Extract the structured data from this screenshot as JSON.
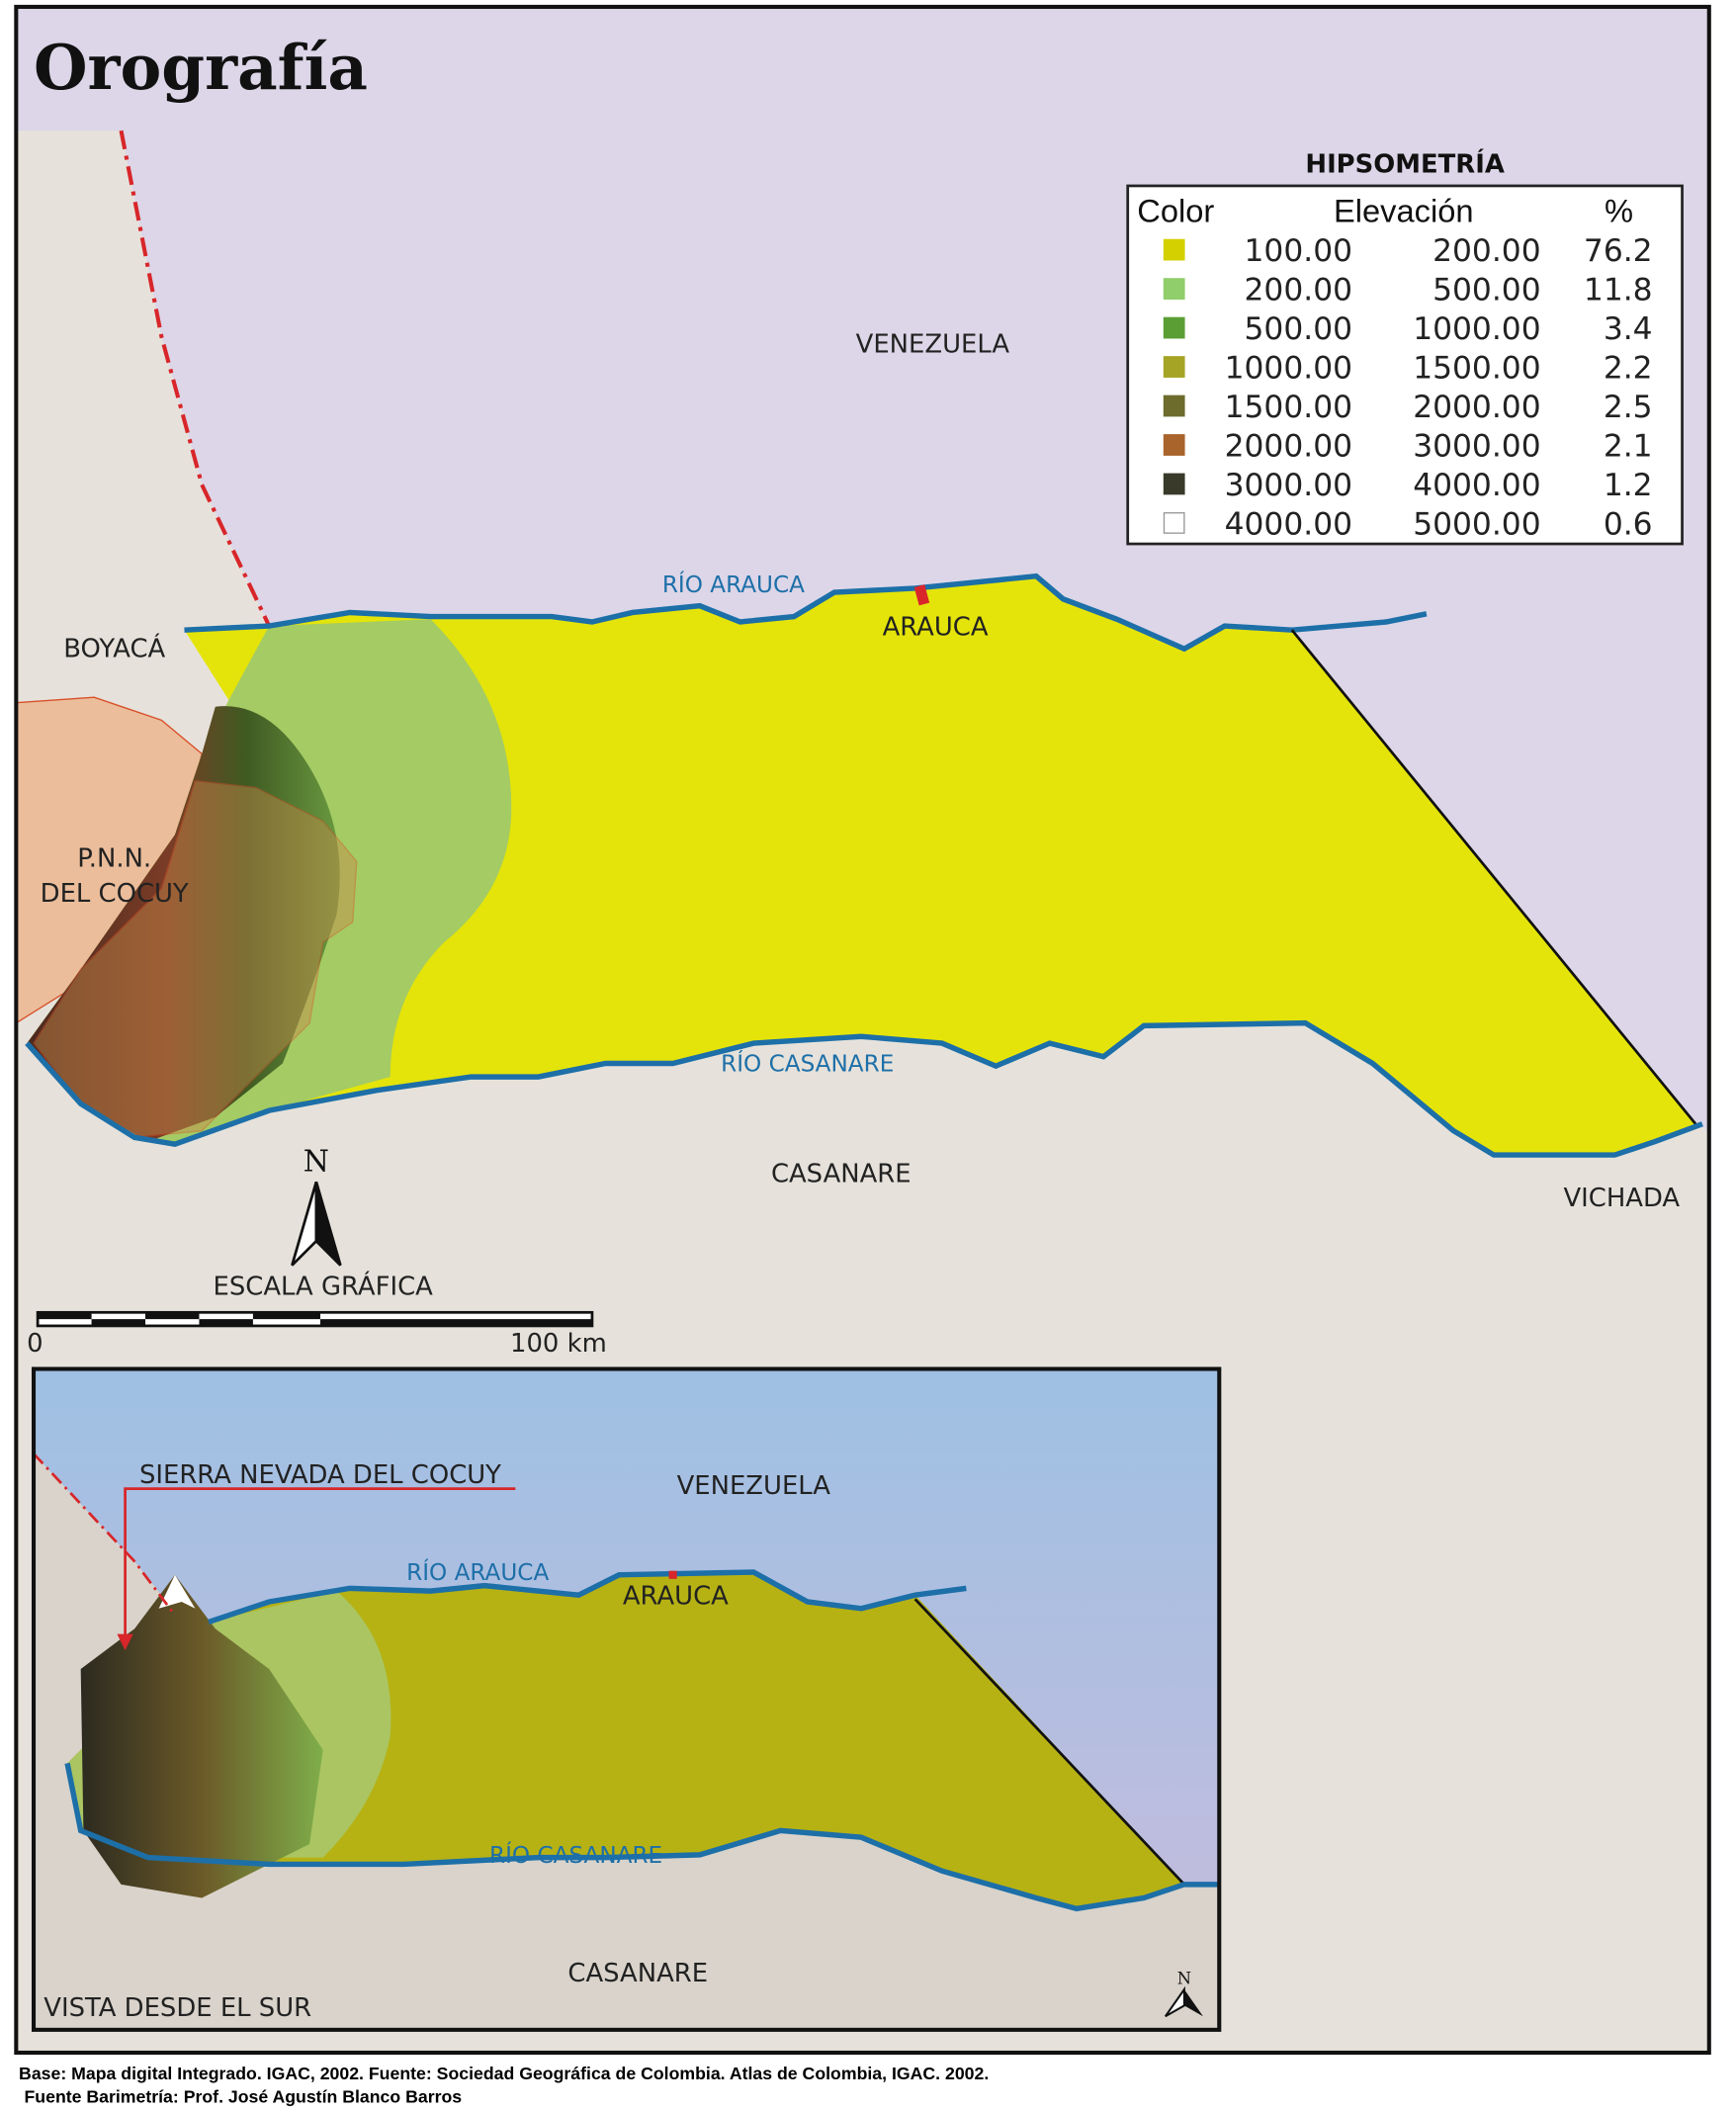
{
  "title": "Orografía",
  "legend": {
    "title": "HIPSOMETRÍA",
    "headers": {
      "color": "Color",
      "elevation": "Elevación",
      "percent": "%"
    },
    "rows": [
      {
        "color": "#d4d000",
        "min": "100.00",
        "max": "200.00",
        "pct": "76.2"
      },
      {
        "color": "#8fce6a",
        "min": "200.00",
        "max": "500.00",
        "pct": "11.8"
      },
      {
        "color": "#5a9e34",
        "min": "500.00",
        "max": "1000.00",
        "pct": "3.4"
      },
      {
        "color": "#a5a424",
        "min": "1000.00",
        "max": "1500.00",
        "pct": "2.2"
      },
      {
        "color": "#6d6c2c",
        "min": "1500.00",
        "max": "2000.00",
        "pct": "2.5"
      },
      {
        "color": "#a8642a",
        "min": "2000.00",
        "max": "3000.00",
        "pct": "2.1"
      },
      {
        "color": "#393a2a",
        "min": "3000.00",
        "max": "4000.00",
        "pct": "1.2"
      },
      {
        "color": "#ffffff",
        "min": "4000.00",
        "max": "5000.00",
        "pct": "0.6"
      }
    ]
  },
  "map_labels": {
    "venezuela": "VENEZUELA",
    "boyaca": "BOYACÁ",
    "pnn_line1": "P.N.N.",
    "pnn_line2": "DEL COCUY",
    "rio_arauca": "RÍO ARAUCA",
    "arauca": "ARAUCA",
    "rio_casanare": "RÍO CASANARE",
    "casanare": "CASANARE",
    "vichada": "VICHADA",
    "north": "N"
  },
  "scale": {
    "title": "ESCALA GRÁFICA",
    "start": "0",
    "end": "100 km"
  },
  "inset": {
    "sierra": "SIERRA NEVADA DEL COCUY",
    "venezuela": "VENEZUELA",
    "rio_arauca": "RÍO ARAUCA",
    "arauca": "ARAUCA",
    "rio_casanare": "RÍO CASANARE",
    "casanare": "CASANARE",
    "view": "VISTA DESDE EL SUR",
    "north": "N"
  },
  "footer": {
    "line1": "Base: Mapa digital Integrado. IGAC, 2002.  Fuente: Sociedad Geográfica de Colombia. Atlas de Colombia, IGAC. 2002.",
    "line2": "Fuente Barimetría: Prof. José Agustín Blanco Barros"
  },
  "colors": {
    "venezuela_bg": "#dcd6e8",
    "land_bg": "#e6e2db",
    "river": "#1d6fa8",
    "border": "#d8262a",
    "park": "#ebbd9b"
  }
}
